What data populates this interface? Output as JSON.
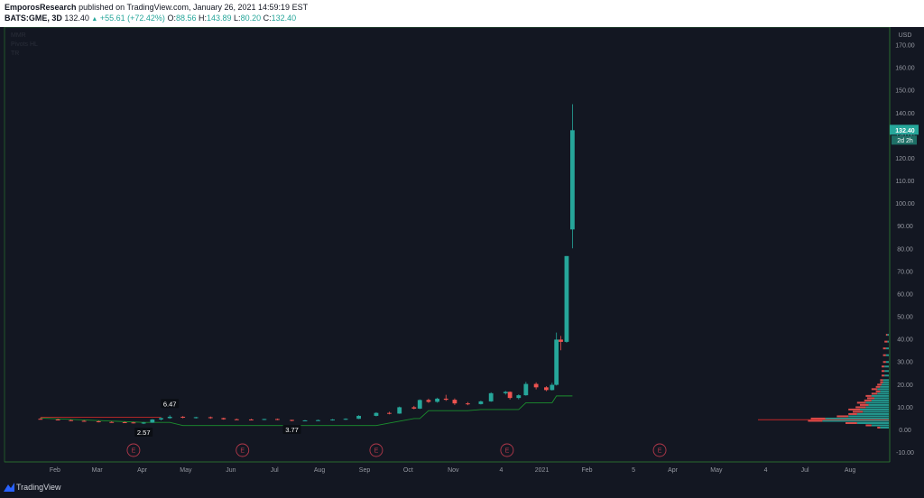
{
  "header": {
    "author": "EmporosResearch",
    "published": "published on TradingView.com, January 26, 2021 14:59:19 EST",
    "symbol": "BATS:GME, 3D",
    "last": "132.40",
    "change": "+55.61 (+72.42%)",
    "o_label": "O:",
    "o": "88.56",
    "h_label": "H:",
    "h": "143.89",
    "l_label": "L:",
    "l": "80.20",
    "c_label": "C:",
    "c": "132.40"
  },
  "legend": [
    "MMR",
    "Pivots HL",
    "TR"
  ],
  "footer": {
    "brand": "TradingView"
  },
  "colors": {
    "up": "#26a69a",
    "down": "#ef5350",
    "support": "#1b8f2e",
    "resistance": "#c62828",
    "axis_border": "#2e7d32",
    "background": "#131722"
  },
  "chart_data": {
    "type": "candlestick",
    "currency": "USD",
    "y_ticks": [
      -10,
      0,
      10,
      20,
      30,
      40,
      50,
      60,
      70,
      80,
      90,
      100,
      110,
      120,
      130,
      140,
      150,
      160,
      170
    ],
    "ylim": [
      -13,
      177
    ],
    "last_price_label": "132.40",
    "countdown_label": "2d 2h",
    "x_labels": [
      "Feb",
      "Mar",
      "Apr",
      "May",
      "Jun",
      "Jul",
      "Aug",
      "Sep",
      "Oct",
      "Nov",
      "4",
      "2021",
      "Feb",
      "5",
      "Apr",
      "May",
      "4",
      "Jul",
      "Aug"
    ],
    "x_label_dates": [
      "2020-02-01",
      "2020-03-01",
      "2020-04-01",
      "2020-05-01",
      "2020-06-01",
      "2020-07-01",
      "2020-08-01",
      "2020-09-01",
      "2020-10-01",
      "2020-11-01",
      "2020-12-04",
      "2021-01-01",
      "2021-02-01",
      "2021-03-05",
      "2021-04-01",
      "2021-05-01",
      "2021-06-04",
      "2021-07-01",
      "2021-08-01"
    ],
    "candles": [
      {
        "date": "2020-01-22",
        "o": 4.9,
        "h": 5.2,
        "l": 4.6,
        "c": 4.8
      },
      {
        "date": "2020-02-03",
        "o": 4.6,
        "h": 4.9,
        "l": 4.2,
        "c": 4.3
      },
      {
        "date": "2020-02-12",
        "o": 4.3,
        "h": 4.6,
        "l": 3.9,
        "c": 4.0
      },
      {
        "date": "2020-02-21",
        "o": 4.0,
        "h": 4.3,
        "l": 3.6,
        "c": 3.8
      },
      {
        "date": "2020-03-02",
        "o": 3.8,
        "h": 4.1,
        "l": 3.3,
        "c": 3.5
      },
      {
        "date": "2020-03-11",
        "o": 3.5,
        "h": 3.8,
        "l": 3.2,
        "c": 3.4
      },
      {
        "date": "2020-03-20",
        "o": 3.4,
        "h": 3.7,
        "l": 3.0,
        "c": 3.3
      },
      {
        "date": "2020-03-26",
        "o": 3.3,
        "h": 3.6,
        "l": 2.8,
        "c": 3.0
      },
      {
        "date": "2020-04-02",
        "o": 3.0,
        "h": 3.5,
        "l": 2.57,
        "c": 3.2
      },
      {
        "date": "2020-04-08",
        "o": 3.2,
        "h": 4.8,
        "l": 3.1,
        "c": 4.6
      },
      {
        "date": "2020-04-14",
        "o": 4.6,
        "h": 5.5,
        "l": 4.2,
        "c": 5.2
      },
      {
        "date": "2020-04-20",
        "o": 5.2,
        "h": 6.47,
        "l": 4.9,
        "c": 5.8
      },
      {
        "date": "2020-04-29",
        "o": 5.8,
        "h": 6.1,
        "l": 5.1,
        "c": 5.4
      },
      {
        "date": "2020-05-08",
        "o": 5.4,
        "h": 5.8,
        "l": 5.0,
        "c": 5.6
      },
      {
        "date": "2020-05-18",
        "o": 5.6,
        "h": 5.9,
        "l": 4.9,
        "c": 5.2
      },
      {
        "date": "2020-05-27",
        "o": 5.2,
        "h": 5.4,
        "l": 4.5,
        "c": 4.7
      },
      {
        "date": "2020-06-05",
        "o": 4.7,
        "h": 5.0,
        "l": 4.4,
        "c": 4.6
      },
      {
        "date": "2020-06-15",
        "o": 4.6,
        "h": 4.9,
        "l": 4.3,
        "c": 4.5
      },
      {
        "date": "2020-06-24",
        "o": 4.5,
        "h": 4.9,
        "l": 4.3,
        "c": 4.8
      },
      {
        "date": "2020-07-03",
        "o": 4.8,
        "h": 5.0,
        "l": 4.3,
        "c": 4.4
      },
      {
        "date": "2020-07-13",
        "o": 4.4,
        "h": 4.5,
        "l": 3.77,
        "c": 4.1
      },
      {
        "date": "2020-07-22",
        "o": 4.1,
        "h": 4.4,
        "l": 3.9,
        "c": 4.2
      },
      {
        "date": "2020-07-31",
        "o": 4.2,
        "h": 4.6,
        "l": 4.0,
        "c": 4.3
      },
      {
        "date": "2020-08-10",
        "o": 4.3,
        "h": 4.8,
        "l": 4.1,
        "c": 4.6
      },
      {
        "date": "2020-08-19",
        "o": 4.6,
        "h": 5.1,
        "l": 4.4,
        "c": 4.9
      },
      {
        "date": "2020-08-28",
        "o": 4.9,
        "h": 6.5,
        "l": 4.8,
        "c": 6.2
      },
      {
        "date": "2020-09-09",
        "o": 6.2,
        "h": 7.8,
        "l": 6.0,
        "c": 7.5
      },
      {
        "date": "2020-09-18",
        "o": 7.5,
        "h": 8.0,
        "l": 6.9,
        "c": 7.2
      },
      {
        "date": "2020-09-25",
        "o": 7.2,
        "h": 10.3,
        "l": 7.1,
        "c": 10.0
      },
      {
        "date": "2020-10-05",
        "o": 10.0,
        "h": 10.6,
        "l": 9.1,
        "c": 9.4
      },
      {
        "date": "2020-10-09",
        "o": 9.4,
        "h": 13.5,
        "l": 9.2,
        "c": 13.2
      },
      {
        "date": "2020-10-15",
        "o": 13.2,
        "h": 13.8,
        "l": 11.9,
        "c": 12.4
      },
      {
        "date": "2020-10-21",
        "o": 12.4,
        "h": 14.2,
        "l": 12.0,
        "c": 13.8
      },
      {
        "date": "2020-10-27",
        "o": 13.8,
        "h": 15.5,
        "l": 12.8,
        "c": 13.3
      },
      {
        "date": "2020-11-02",
        "o": 13.3,
        "h": 13.9,
        "l": 11.0,
        "c": 11.7
      },
      {
        "date": "2020-11-11",
        "o": 11.7,
        "h": 12.3,
        "l": 10.9,
        "c": 11.4
      },
      {
        "date": "2020-11-20",
        "o": 11.4,
        "h": 12.9,
        "l": 11.2,
        "c": 12.6
      },
      {
        "date": "2020-11-27",
        "o": 12.6,
        "h": 16.6,
        "l": 12.4,
        "c": 16.2
      },
      {
        "date": "2020-12-07",
        "o": 16.2,
        "h": 17.2,
        "l": 15.6,
        "c": 16.8
      },
      {
        "date": "2020-12-10",
        "o": 16.8,
        "h": 17.0,
        "l": 13.4,
        "c": 14.1
      },
      {
        "date": "2020-12-16",
        "o": 14.1,
        "h": 15.7,
        "l": 13.5,
        "c": 15.3
      },
      {
        "date": "2020-12-21",
        "o": 15.3,
        "h": 21.2,
        "l": 15.1,
        "c": 20.3
      },
      {
        "date": "2020-12-28",
        "o": 20.3,
        "h": 21.0,
        "l": 17.9,
        "c": 18.8
      },
      {
        "date": "2021-01-04",
        "o": 18.8,
        "h": 19.3,
        "l": 17.1,
        "c": 17.6
      },
      {
        "date": "2021-01-08",
        "o": 17.6,
        "h": 20.8,
        "l": 17.4,
        "c": 19.9
      },
      {
        "date": "2021-01-11",
        "o": 19.9,
        "h": 43.0,
        "l": 19.6,
        "c": 39.9
      },
      {
        "date": "2021-01-14",
        "o": 39.9,
        "h": 41.5,
        "l": 35.2,
        "c": 38.9
      },
      {
        "date": "2021-01-18",
        "o": 38.9,
        "h": 76.8,
        "l": 38.5,
        "c": 76.8
      },
      {
        "date": "2021-01-22",
        "o": 88.56,
        "h": 143.89,
        "l": 80.2,
        "c": 132.4
      }
    ],
    "support_line": [
      [
        0,
        5.2
      ],
      [
        8,
        3.3
      ],
      [
        11,
        3.3
      ],
      [
        12,
        1.9
      ],
      [
        26,
        1.9
      ],
      [
        27,
        3.0
      ],
      [
        29,
        5.0
      ],
      [
        30,
        5.0
      ],
      [
        31,
        8.5
      ],
      [
        35,
        8.5
      ],
      [
        36,
        9.0
      ],
      [
        40,
        9.0
      ],
      [
        41,
        12.0
      ],
      [
        44,
        12.0
      ],
      [
        45,
        15.0
      ],
      [
        48,
        15.0
      ]
    ],
    "resistance_line": [
      [
        0,
        5.6
      ],
      [
        10,
        5.6
      ]
    ],
    "pivot_labels": [
      {
        "text": "6.47",
        "index": 11,
        "value": 6.47,
        "kind": "high"
      },
      {
        "text": "2.57",
        "index": 8,
        "value": 2.57,
        "kind": "low"
      },
      {
        "text": "3.77",
        "index": 20,
        "value": 3.77,
        "kind": "low"
      }
    ],
    "earnings_markers": [
      "2020-03-26",
      "2020-06-09",
      "2020-09-09",
      "2020-12-08",
      "2021-03-23"
    ],
    "earnings_label": "E",
    "volume_profile": {
      "poc_price": 4.5,
      "bins": [
        [
          1.0,
          6,
          2
        ],
        [
          2.0,
          12,
          4
        ],
        [
          3.0,
          22,
          8
        ],
        [
          4.0,
          46,
          10
        ],
        [
          5.0,
          44,
          10
        ],
        [
          6.0,
          28,
          8
        ],
        [
          7.0,
          22,
          6
        ],
        [
          8.0,
          18,
          7
        ],
        [
          9.0,
          20,
          8
        ],
        [
          10.0,
          16,
          7
        ],
        [
          11.0,
          14,
          6
        ],
        [
          12.0,
          16,
          6
        ],
        [
          13.0,
          12,
          5
        ],
        [
          14.0,
          10,
          5
        ],
        [
          15.0,
          12,
          4
        ],
        [
          16.0,
          8,
          4
        ],
        [
          17.0,
          6,
          3
        ],
        [
          18.0,
          8,
          4
        ],
        [
          19.0,
          6,
          3
        ],
        [
          20.0,
          5,
          3
        ],
        [
          21.0,
          4,
          2
        ],
        [
          22.0,
          4,
          2
        ],
        [
          24.0,
          3,
          2
        ],
        [
          26.0,
          3,
          2
        ],
        [
          28.0,
          3,
          2
        ],
        [
          30.0,
          2,
          2
        ],
        [
          33.0,
          2,
          2
        ],
        [
          36.0,
          2,
          2
        ],
        [
          39.0,
          1,
          2
        ],
        [
          42.0,
          1,
          1
        ]
      ]
    }
  }
}
